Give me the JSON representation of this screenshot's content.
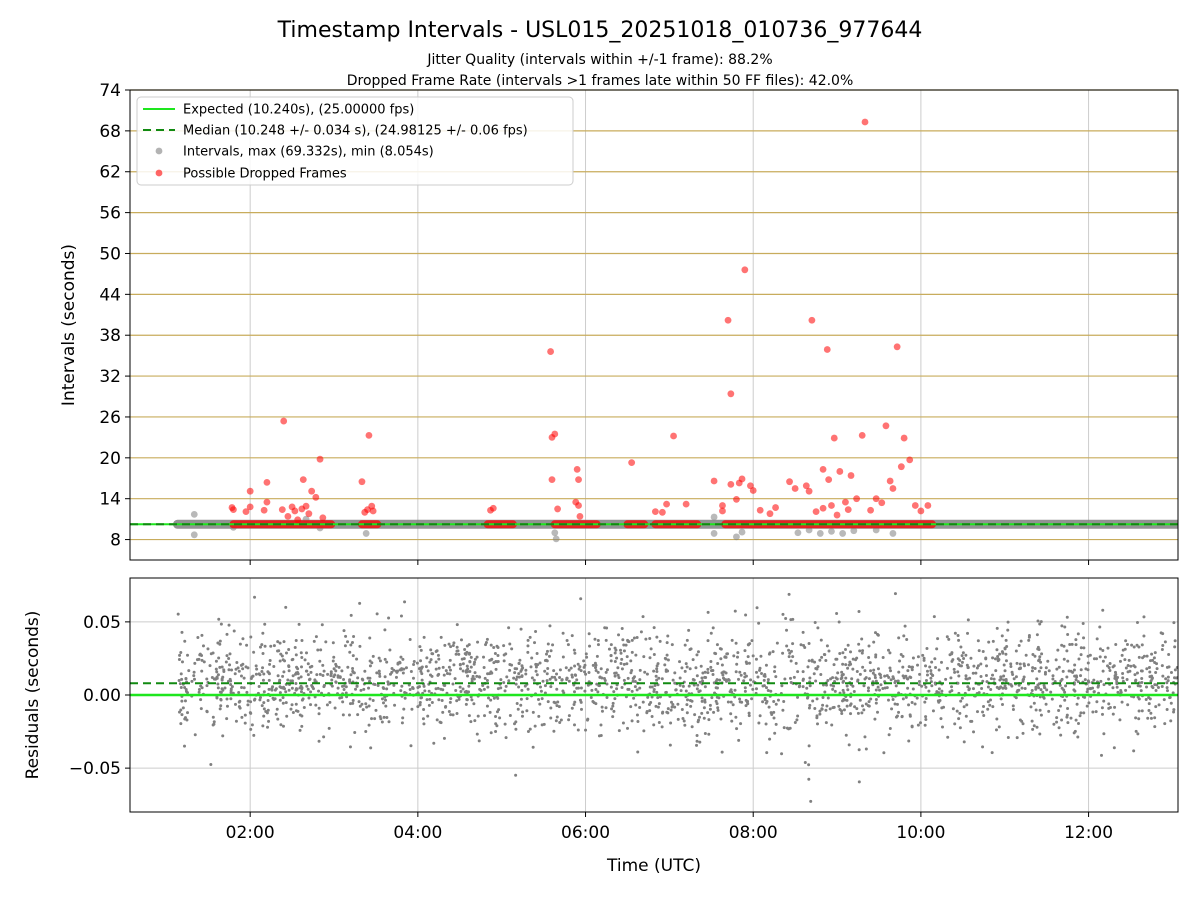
{
  "figure": {
    "title": "Timestamp Intervals - USL015_20251018_010736_977644",
    "subtitle_1": "Jitter Quality (intervals within +/-1 frame): 88.2%",
    "subtitle_2": "Dropped Frame Rate (intervals >1 frames late within 50 FF files): 42.0%"
  },
  "colors": {
    "expected": "#1ee61e",
    "median": "#118a11",
    "intervals": "#808080",
    "dropped": "#ff0000",
    "hgrid_top": "#c8ac5c",
    "grid": "#cccccc"
  },
  "chart_data": [
    {
      "type": "scatter",
      "panel": "top",
      "ylabel": "Intervals (seconds)",
      "ylim": [
        5,
        74
      ],
      "yticks": [
        "8",
        "14",
        "20",
        "26",
        "32",
        "38",
        "44",
        "50",
        "56",
        "62",
        "68",
        "74"
      ],
      "xlim": [
        "00:34",
        "13:04"
      ],
      "xticks": [
        "02:00",
        "04:00",
        "06:00",
        "08:00",
        "10:00",
        "12:00"
      ],
      "xlabel": "",
      "grid": true,
      "legend_position": "top-left",
      "legend": [
        "Expected (10.240s), (25.00000 fps)",
        "Median (10.248 +/- 0.034 s), (24.98125 +/- 0.06 fps)",
        "Intervals, max (69.332s), min (8.054s)",
        "Possible Dropped Frames"
      ],
      "expected": 10.24,
      "median": 10.248,
      "intervals_band": {
        "x_start": "01:08",
        "x_end": "13:04",
        "y": 10.24
      },
      "gray_points": [
        [
          "01:20",
          11.7
        ],
        [
          "01:20",
          8.7
        ],
        [
          "01:48",
          9.8
        ],
        [
          "02:40",
          11.0
        ],
        [
          "02:50",
          9.7
        ],
        [
          "03:23",
          8.9
        ],
        [
          "05:38",
          9.0
        ],
        [
          "05:39",
          8.1
        ],
        [
          "07:32",
          8.9
        ],
        [
          "07:32",
          11.3
        ],
        [
          "07:48",
          8.4
        ],
        [
          "07:52",
          9.1
        ],
        [
          "08:32",
          9.0
        ],
        [
          "08:40",
          9.4
        ],
        [
          "08:48",
          8.9
        ],
        [
          "08:56",
          9.2
        ],
        [
          "09:04",
          8.9
        ],
        [
          "09:12",
          9.3
        ],
        [
          "09:28",
          9.4
        ],
        [
          "09:40",
          8.9
        ]
      ],
      "dropped_segments": [
        [
          "01:48",
          "02:58"
        ],
        [
          "03:20",
          "03:31"
        ],
        [
          "04:50",
          "05:08"
        ],
        [
          "05:38",
          "06:08"
        ],
        [
          "06:30",
          "06:42"
        ],
        [
          "06:50",
          "07:20"
        ],
        [
          "07:40",
          "10:08"
        ]
      ],
      "dropped_points": [
        [
          "01:47",
          12.7
        ],
        [
          "01:48",
          12.4
        ],
        [
          "01:57",
          12.1
        ],
        [
          "02:00",
          15.1
        ],
        [
          "02:00",
          12.8
        ],
        [
          "02:10",
          12.3
        ],
        [
          "02:12",
          13.5
        ],
        [
          "02:12",
          16.4
        ],
        [
          "02:23",
          12.4
        ],
        [
          "02:24",
          25.4
        ],
        [
          "02:27",
          11.4
        ],
        [
          "02:30",
          12.8
        ],
        [
          "02:32",
          12.2
        ],
        [
          "02:34",
          10.9
        ],
        [
          "02:37",
          12.5
        ],
        [
          "02:38",
          16.8
        ],
        [
          "02:40",
          12.9
        ],
        [
          "02:42",
          11.8
        ],
        [
          "02:44",
          15.1
        ],
        [
          "02:47",
          14.2
        ],
        [
          "02:50",
          19.8
        ],
        [
          "02:52",
          11.2
        ],
        [
          "03:20",
          16.5
        ],
        [
          "03:22",
          12.0
        ],
        [
          "03:24",
          12.4
        ],
        [
          "03:25",
          23.3
        ],
        [
          "03:27",
          12.9
        ],
        [
          "03:28",
          12.2
        ],
        [
          "04:52",
          12.3
        ],
        [
          "04:54",
          12.6
        ],
        [
          "05:35",
          35.6
        ],
        [
          "05:36",
          23.0
        ],
        [
          "05:36",
          16.8
        ],
        [
          "05:38",
          23.5
        ],
        [
          "05:40",
          12.5
        ],
        [
          "05:53",
          13.5
        ],
        [
          "05:54",
          18.3
        ],
        [
          "05:55",
          16.8
        ],
        [
          "05:55",
          13.0
        ],
        [
          "05:56",
          11.4
        ],
        [
          "06:33",
          19.3
        ],
        [
          "06:50",
          12.1
        ],
        [
          "06:55",
          12.0
        ],
        [
          "06:58",
          13.2
        ],
        [
          "07:03",
          23.2
        ],
        [
          "07:12",
          13.2
        ],
        [
          "07:32",
          16.6
        ],
        [
          "07:38",
          12.2
        ],
        [
          "07:42",
          40.2
        ],
        [
          "07:44",
          29.4
        ],
        [
          "07:44",
          16.1
        ],
        [
          "07:50",
          16.3
        ],
        [
          "07:52",
          16.9
        ],
        [
          "07:54",
          47.6
        ],
        [
          "07:58",
          15.9
        ],
        [
          "08:00",
          15.2
        ],
        [
          "08:05",
          12.3
        ],
        [
          "08:12",
          11.8
        ],
        [
          "08:26",
          16.5
        ],
        [
          "08:30",
          15.5
        ],
        [
          "08:38",
          15.9
        ],
        [
          "08:40",
          15.1
        ],
        [
          "08:42",
          40.2
        ],
        [
          "08:45",
          12.1
        ],
        [
          "08:50",
          18.3
        ],
        [
          "08:53",
          35.9
        ],
        [
          "08:54",
          16.8
        ],
        [
          "08:56",
          13.0
        ],
        [
          "08:58",
          22.9
        ],
        [
          "09:02",
          18.0
        ],
        [
          "09:06",
          13.5
        ],
        [
          "09:10",
          17.4
        ],
        [
          "09:14",
          14.0
        ],
        [
          "09:18",
          23.3
        ],
        [
          "09:20",
          69.3
        ],
        [
          "09:28",
          14.0
        ],
        [
          "09:32",
          13.4
        ],
        [
          "09:35",
          24.7
        ],
        [
          "09:38",
          16.6
        ],
        [
          "09:43",
          36.3
        ],
        [
          "09:46",
          18.7
        ],
        [
          "09:48",
          22.9
        ],
        [
          "09:52",
          19.7
        ],
        [
          "09:56",
          13.0
        ],
        [
          "10:00",
          12.2
        ],
        [
          "10:05",
          13.0
        ],
        [
          "07:38",
          13.0
        ],
        [
          "07:48",
          13.9
        ],
        [
          "08:16",
          12.7
        ],
        [
          "09:24",
          12.3
        ],
        [
          "09:40",
          15.5
        ],
        [
          "09:00",
          11.6
        ],
        [
          "08:50",
          12.6
        ],
        [
          "09:08",
          12.4
        ]
      ]
    },
    {
      "type": "scatter",
      "panel": "bottom",
      "ylabel": "Residuals (seconds)",
      "xlabel": "Time (UTC)",
      "ylim": [
        -0.08,
        0.08
      ],
      "yticks": [
        "0.05",
        "0.00",
        "−0.05"
      ],
      "xlim": [
        "00:34",
        "13:04"
      ],
      "xticks": [
        "02:00",
        "04:00",
        "06:00",
        "08:00",
        "10:00",
        "12:00"
      ],
      "grid": true,
      "expected_residual": 0.0,
      "median_residual": 0.008,
      "point_count": 2400,
      "residual_std": 0.02,
      "x_range": [
        "01:08",
        "13:04"
      ]
    }
  ]
}
